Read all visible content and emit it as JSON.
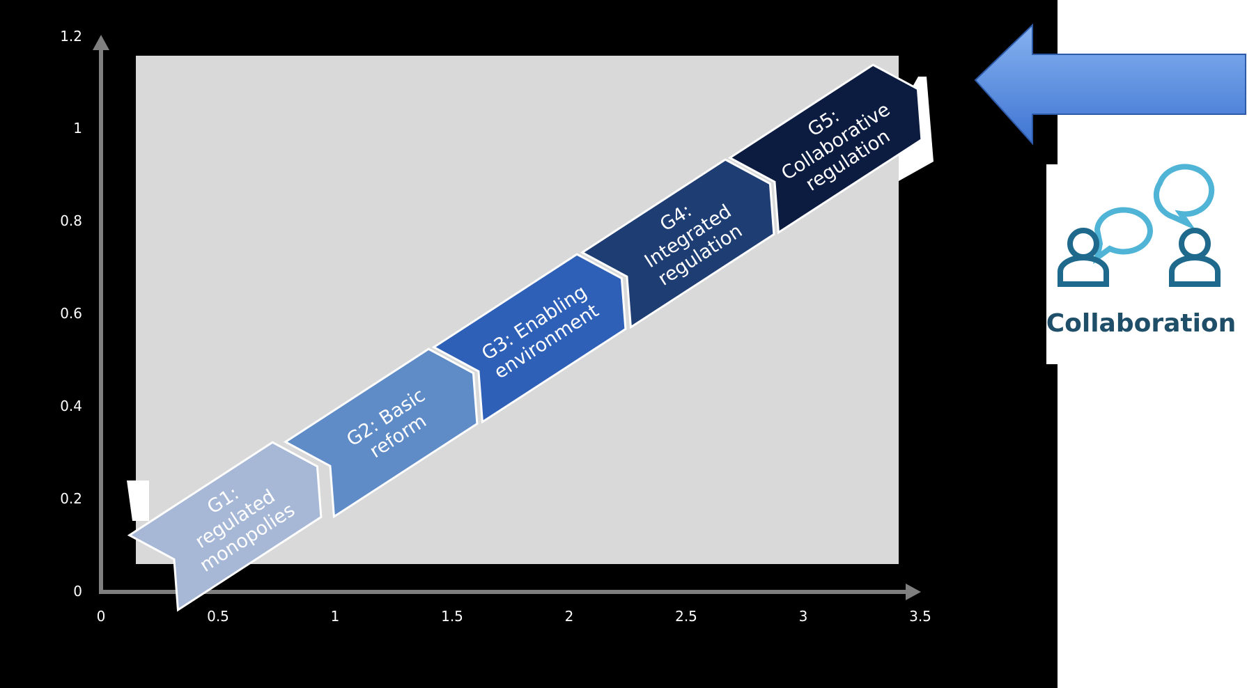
{
  "diagram": {
    "axis": {
      "x_ticks": [
        "0",
        "0.5",
        "1",
        "1.5",
        "2",
        "2.5",
        "3",
        "3.5"
      ],
      "y_ticks": [
        "0",
        "0.2",
        "0.4",
        "0.6",
        "0.8",
        "1",
        "1.2"
      ]
    },
    "stages": [
      {
        "id": "g1",
        "lines": [
          "G1:",
          "regulated",
          "monopolies"
        ],
        "color": "#a7b8d6"
      },
      {
        "id": "g2",
        "lines": [
          "G2: Basic",
          "reform"
        ],
        "color": "#5f8bc7"
      },
      {
        "id": "g3",
        "lines": [
          "G3: Enabling",
          "environment"
        ],
        "color": "#2f60b7"
      },
      {
        "id": "g4",
        "lines": [
          "G4:",
          "Integrated",
          "regulation"
        ],
        "color": "#1e3d72"
      },
      {
        "id": "g5",
        "lines": [
          "G5:",
          "Collaborative",
          "regulation"
        ],
        "color": "#0c1b40"
      }
    ],
    "callout": {
      "label": "Collaboration",
      "icon": "collaboration-icon",
      "text_color": "#1f4e68",
      "icon_dark": "#1f6a8c",
      "icon_light": "#4fb4d6"
    },
    "arrow_color": "#5b8fe0",
    "colors": {
      "background": "#000000",
      "plot_area": "#d9d9d9",
      "axis": "#7f7f7f"
    }
  }
}
